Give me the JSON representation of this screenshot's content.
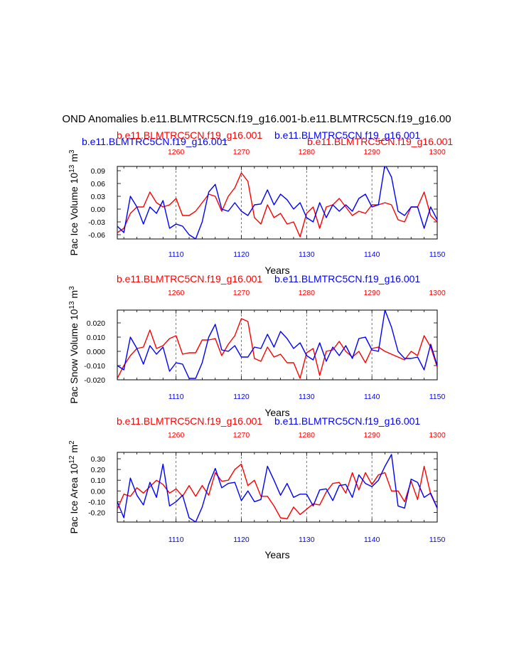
{
  "colors": {
    "ctrl": "#0000ff",
    "diff": "#ff0000",
    "text": "#000000"
  },
  "chart_data": {
    "type": "line",
    "title": "OND Anomalies b.e11.BLMTRC5CN.f19_g16.001-b.e11.BLMTRC5CN.f19_g16.00",
    "series_names": {
      "blue": "b.e11.BLMTRC5CN.f19_g16.001",
      "red": "b.e11.BLMTRC5CN.f19_g16.001"
    },
    "subtitle_blue": "b.e11.BLMTRC5CN.f19_g16.001",
    "subtitle_red": "b.e11.BLMTRC5CN.f19_g16.001",
    "xlabel": "Years",
    "x_bottom_range": [
      1101,
      1150
    ],
    "x_bottom_ticks": [
      "1110",
      "1120",
      "1130",
      "1140",
      "1150"
    ],
    "x_top_ticks": [
      "1260",
      "1270",
      "1280",
      "1290",
      "1300"
    ],
    "panels": [
      {
        "name": "ice-volume",
        "ylabel_base": "Pac Ice Volume 10",
        "ylabel_exp": "13",
        "ylabel_unit": " m",
        "ylabel_unit_exp": "3",
        "ylim": [
          -0.07,
          0.1
        ],
        "yticks": [
          "0.09",
          "0.06",
          "0.03",
          "0.00",
          "-0.03",
          "-0.06"
        ],
        "ytick_values": [
          0.09,
          0.06,
          0.03,
          0.0,
          -0.03,
          -0.06
        ],
        "blue": [
          -0.04,
          -0.055,
          0.03,
          0.005,
          -0.035,
          0.005,
          -0.01,
          0.02,
          -0.045,
          -0.035,
          -0.04,
          -0.06,
          -0.07,
          -0.03,
          0.04,
          0.058,
          0.0,
          -0.005,
          0.015,
          -0.005,
          -0.015,
          0.01,
          0.012,
          0.045,
          0.01,
          0.035,
          0.022,
          0.0,
          0.015,
          -0.02,
          -0.03,
          0.015,
          -0.02,
          0.01,
          -0.005,
          0.01,
          -0.005,
          0.025,
          0.035,
          0.005,
          0.01,
          0.105,
          0.075,
          -0.005,
          -0.015,
          0.005,
          0.005,
          -0.045,
          0.005,
          -0.025
        ],
        "red": [
          -0.055,
          -0.045,
          -0.01,
          0.005,
          0.005,
          0.04,
          0.015,
          0.005,
          0.01,
          0.025,
          -0.015,
          -0.015,
          -0.005,
          0.015,
          0.035,
          0.03,
          -0.005,
          0.03,
          0.05,
          0.085,
          0.065,
          -0.02,
          -0.035,
          0.01,
          -0.02,
          -0.01,
          -0.035,
          -0.03,
          -0.065,
          -0.01,
          0.005,
          -0.045,
          0.005,
          0.01,
          0.025,
          0.005,
          -0.015,
          -0.005,
          -0.01,
          0.01,
          0.01,
          0.015,
          0.01,
          -0.025,
          -0.03,
          0.005,
          0.005,
          0.04,
          -0.015,
          -0.03
        ]
      },
      {
        "name": "snow-volume",
        "ylabel_base": "Pac Snow Volume 10",
        "ylabel_exp": "13",
        "ylabel_unit": " m",
        "ylabel_unit_exp": "3",
        "ylim": [
          -0.02,
          0.029
        ],
        "yticks": [
          "0.020",
          "0.010",
          "0.000",
          "-0.010",
          "-0.020"
        ],
        "ytick_values": [
          0.02,
          0.01,
          0.0,
          -0.01,
          -0.02
        ],
        "blue": [
          -0.01,
          -0.013,
          0.01,
          0.002,
          -0.009,
          0.004,
          -0.002,
          0.003,
          -0.014,
          -0.008,
          -0.009,
          -0.019,
          -0.019,
          -0.008,
          0.01,
          0.019,
          0.001,
          0.0,
          0.004,
          -0.004,
          -0.004,
          0.003,
          0.002,
          0.012,
          0.003,
          0.014,
          0.009,
          0.002,
          0.006,
          -0.003,
          -0.006,
          0.006,
          -0.007,
          0.003,
          -0.003,
          0.004,
          -0.005,
          0.009,
          0.01,
          0.001,
          0.0,
          0.029,
          0.017,
          0.0,
          -0.005,
          -0.005,
          -0.004,
          -0.013,
          0.005,
          -0.01
        ],
        "red": [
          -0.019,
          -0.01,
          -0.003,
          0.002,
          0.003,
          0.015,
          0.002,
          0.004,
          0.009,
          0.011,
          -0.002,
          -0.001,
          -0.001,
          0.008,
          0.008,
          0.009,
          -0.003,
          0.005,
          0.011,
          0.023,
          0.021,
          -0.005,
          -0.007,
          0.003,
          -0.004,
          -0.002,
          -0.008,
          -0.008,
          -0.019,
          -0.001,
          0.002,
          -0.017,
          0.0,
          0.001,
          0.007,
          0.0,
          -0.004,
          0.0,
          -0.008,
          0.002,
          0.003,
          0.0,
          -0.002,
          -0.004,
          -0.006,
          0.0,
          -0.003,
          0.011,
          0.003,
          -0.011
        ]
      },
      {
        "name": "ice-area",
        "ylabel_base": "Pac Ice Area 10",
        "ylabel_exp": "12",
        "ylabel_unit": " m",
        "ylabel_unit_exp": "2",
        "ylim": [
          -0.29,
          0.36
        ],
        "yticks": [
          "0.30",
          "0.20",
          "0.10",
          "0.00",
          "-0.10",
          "-0.20"
        ],
        "ytick_values": [
          0.3,
          0.2,
          0.1,
          0.0,
          -0.1,
          -0.2
        ],
        "blue": [
          -0.1,
          -0.25,
          0.12,
          -0.04,
          -0.13,
          0.08,
          -0.06,
          0.25,
          -0.14,
          -0.1,
          -0.04,
          -0.25,
          -0.29,
          -0.15,
          0.06,
          0.21,
          0.03,
          0.07,
          0.08,
          -0.09,
          0.0,
          -0.1,
          -0.08,
          0.23,
          0.1,
          -0.04,
          0.07,
          -0.06,
          -0.03,
          -0.03,
          -0.14,
          0.01,
          0.02,
          -0.09,
          0.05,
          0.06,
          -0.06,
          0.15,
          0.07,
          0.04,
          0.1,
          0.23,
          0.34,
          -0.14,
          -0.16,
          0.11,
          0.08,
          -0.06,
          -0.02,
          -0.16
        ],
        "red": [
          -0.17,
          -0.03,
          -0.05,
          0.03,
          -0.02,
          0.04,
          0.1,
          0.06,
          -0.02,
          0.02,
          -0.05,
          0.05,
          -0.05,
          0.05,
          -0.04,
          0.17,
          0.09,
          0.1,
          0.2,
          0.25,
          0.05,
          0.1,
          -0.05,
          -0.05,
          -0.14,
          -0.25,
          -0.26,
          -0.15,
          -0.22,
          -0.17,
          -0.12,
          -0.13,
          -0.01,
          0.07,
          0.08,
          -0.02,
          0.17,
          0.01,
          0.17,
          0.06,
          0.15,
          0.17,
          0.0,
          0.0,
          -0.1,
          0.09,
          -0.08,
          0.23,
          -0.03,
          -0.16
        ]
      }
    ]
  }
}
